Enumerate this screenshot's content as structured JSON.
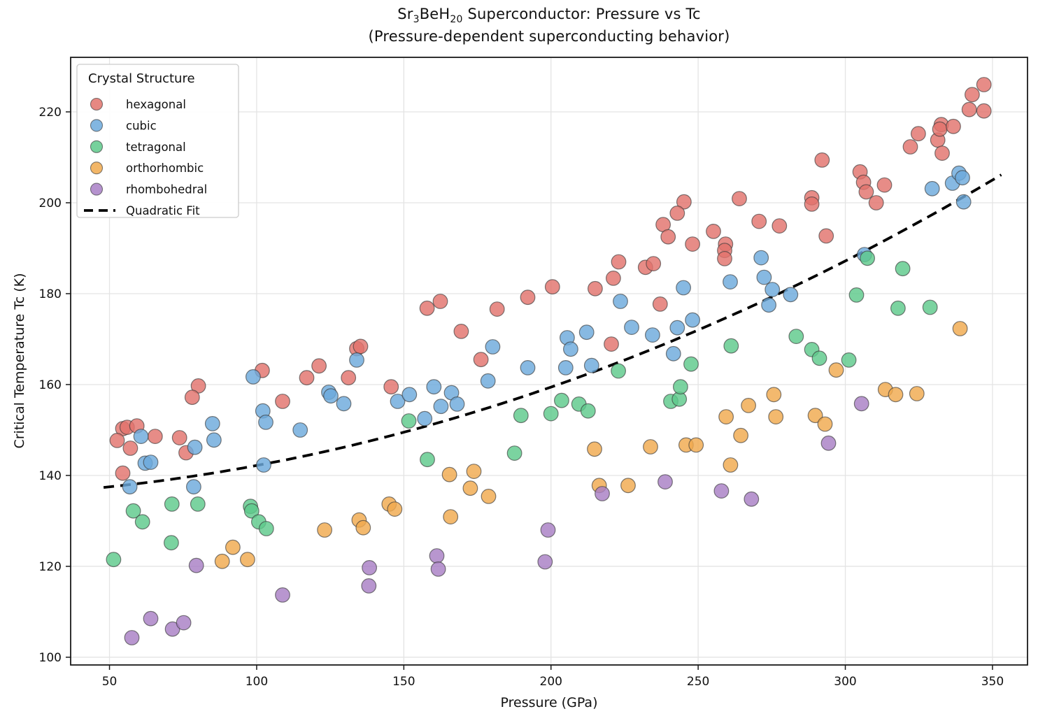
{
  "title": {
    "pre": "Sr",
    "sub1": "3",
    "mid": "BeH",
    "sub2": "20",
    "post": " Superconductor: Pressure vs Tc",
    "line2": "(Pressure-dependent superconducting behavior)"
  },
  "chart_data": {
    "type": "scatter",
    "title": "Sr3BeH20 Superconductor: Pressure vs Tc",
    "subtitle": "(Pressure-dependent superconducting behavior)",
    "xlabel": "Pressure (GPa)",
    "ylabel": "Critical Temperature Tc (K)",
    "xlim": [
      36.8,
      361.9
    ],
    "ylim": [
      98.3,
      232.0
    ],
    "xticks": [
      50,
      100,
      150,
      200,
      250,
      300,
      350
    ],
    "yticks": [
      100,
      120,
      140,
      160,
      180,
      200,
      220
    ],
    "grid": true,
    "grid_color": "#e4e4e4",
    "spine_color": "#1a1a1a",
    "legend_title": "Crystal Structure",
    "legend_position": "upper left",
    "marker_edge_color": "#3a3a3a",
    "series": [
      {
        "name": "hexagonal",
        "color": "#e2736c",
        "points": [
          [
            54.5,
            150.3
          ],
          [
            56.0,
            150.6
          ],
          [
            59.3,
            150.9
          ],
          [
            52.6,
            147.7
          ],
          [
            57.1,
            146.0
          ],
          [
            65.5,
            148.6
          ],
          [
            73.8,
            148.3
          ],
          [
            76.0,
            145.0
          ],
          [
            80.2,
            159.7
          ],
          [
            78.1,
            157.2
          ],
          [
            101.9,
            163.1
          ],
          [
            108.8,
            156.3
          ],
          [
            117.0,
            161.5
          ],
          [
            54.5,
            140.5
          ],
          [
            131.2,
            161.5
          ],
          [
            134.0,
            167.9
          ],
          [
            135.3,
            168.4
          ],
          [
            121.2,
            164.1
          ],
          [
            145.7,
            159.5
          ],
          [
            157.9,
            176.8
          ],
          [
            162.4,
            178.3
          ],
          [
            169.5,
            171.7
          ],
          [
            176.2,
            165.5
          ],
          [
            181.7,
            176.6
          ],
          [
            192.1,
            179.2
          ],
          [
            200.5,
            181.5
          ],
          [
            215.0,
            181.1
          ],
          [
            221.2,
            183.4
          ],
          [
            223.0,
            187.0
          ],
          [
            232.1,
            185.8
          ],
          [
            234.8,
            186.6
          ],
          [
            237.1,
            177.7
          ],
          [
            220.5,
            168.9
          ],
          [
            245.2,
            200.2
          ],
          [
            242.9,
            197.7
          ],
          [
            238.1,
            195.2
          ],
          [
            239.8,
            192.5
          ],
          [
            248.1,
            190.9
          ],
          [
            264.0,
            200.9
          ],
          [
            255.2,
            193.7
          ],
          [
            259.3,
            190.9
          ],
          [
            259.0,
            189.5
          ],
          [
            259.0,
            187.7
          ],
          [
            270.7,
            195.9
          ],
          [
            277.6,
            194.9
          ],
          [
            292.1,
            209.4
          ],
          [
            293.5,
            192.7
          ],
          [
            288.6,
            201.1
          ],
          [
            288.6,
            199.7
          ],
          [
            305.0,
            206.8
          ],
          [
            306.2,
            204.5
          ],
          [
            313.3,
            203.9
          ],
          [
            307.1,
            202.4
          ],
          [
            310.5,
            200.0
          ],
          [
            322.1,
            212.3
          ],
          [
            324.8,
            215.2
          ],
          [
            331.4,
            213.8
          ],
          [
            332.6,
            217.2
          ],
          [
            332.1,
            216.2
          ],
          [
            336.7,
            216.8
          ],
          [
            332.9,
            210.9
          ],
          [
            342.1,
            220.5
          ],
          [
            347.1,
            220.2
          ],
          [
            343.1,
            223.8
          ],
          [
            347.1,
            226.0
          ]
        ]
      },
      {
        "name": "cubic",
        "color": "#6ca9dc",
        "points": [
          [
            98.8,
            161.7
          ],
          [
            102.1,
            154.2
          ],
          [
            103.1,
            151.7
          ],
          [
            85.0,
            151.4
          ],
          [
            85.5,
            147.8
          ],
          [
            60.7,
            148.6
          ],
          [
            79.0,
            146.2
          ],
          [
            114.8,
            150.0
          ],
          [
            102.4,
            142.3
          ],
          [
            62.1,
            142.7
          ],
          [
            64.0,
            142.9
          ],
          [
            56.9,
            137.5
          ],
          [
            78.6,
            137.5
          ],
          [
            124.5,
            158.3
          ],
          [
            125.2,
            157.5
          ],
          [
            129.6,
            155.8
          ],
          [
            134.0,
            165.4
          ],
          [
            147.9,
            156.3
          ],
          [
            151.9,
            157.8
          ],
          [
            160.2,
            159.5
          ],
          [
            166.2,
            158.2
          ],
          [
            162.6,
            155.2
          ],
          [
            168.1,
            155.7
          ],
          [
            157.1,
            152.5
          ],
          [
            178.6,
            160.8
          ],
          [
            180.2,
            168.3
          ],
          [
            192.1,
            163.7
          ],
          [
            205.5,
            170.3
          ],
          [
            206.7,
            167.8
          ],
          [
            212.1,
            171.5
          ],
          [
            205.0,
            163.7
          ],
          [
            213.8,
            164.2
          ],
          [
            223.6,
            178.3
          ],
          [
            227.4,
            172.6
          ],
          [
            234.5,
            170.9
          ],
          [
            242.9,
            172.5
          ],
          [
            248.1,
            174.2
          ],
          [
            241.6,
            166.8
          ],
          [
            245.0,
            181.3
          ],
          [
            260.9,
            182.6
          ],
          [
            272.4,
            183.6
          ],
          [
            275.2,
            180.9
          ],
          [
            274.0,
            177.5
          ],
          [
            271.4,
            187.9
          ],
          [
            281.4,
            179.8
          ],
          [
            306.5,
            188.6
          ],
          [
            329.5,
            203.1
          ],
          [
            336.4,
            204.3
          ],
          [
            338.6,
            206.5
          ],
          [
            339.8,
            205.5
          ],
          [
            340.2,
            200.2
          ]
        ]
      },
      {
        "name": "tetragonal",
        "color": "#5ec98b",
        "points": [
          [
            51.4,
            121.5
          ],
          [
            58.1,
            132.2
          ],
          [
            61.2,
            129.8
          ],
          [
            71.2,
            133.7
          ],
          [
            80.0,
            133.7
          ],
          [
            71.0,
            125.2
          ],
          [
            97.9,
            133.2
          ],
          [
            98.3,
            132.2
          ],
          [
            100.7,
            129.8
          ],
          [
            103.3,
            128.3
          ],
          [
            151.7,
            152.0
          ],
          [
            158.0,
            143.5
          ],
          [
            187.6,
            144.9
          ],
          [
            189.8,
            153.2
          ],
          [
            200.0,
            153.6
          ],
          [
            203.6,
            156.5
          ],
          [
            209.5,
            155.7
          ],
          [
            212.6,
            154.2
          ],
          [
            222.9,
            163.0
          ],
          [
            240.7,
            156.3
          ],
          [
            243.6,
            156.8
          ],
          [
            244.0,
            159.5
          ],
          [
            247.6,
            164.5
          ],
          [
            261.2,
            168.5
          ],
          [
            283.3,
            170.6
          ],
          [
            288.6,
            167.7
          ],
          [
            291.2,
            165.8
          ],
          [
            301.2,
            165.4
          ],
          [
            303.8,
            179.7
          ],
          [
            307.5,
            187.8
          ],
          [
            317.9,
            176.8
          ],
          [
            319.5,
            185.5
          ],
          [
            328.8,
            177.0
          ]
        ]
      },
      {
        "name": "orthorhombic",
        "color": "#f0a94e",
        "points": [
          [
            91.9,
            124.2
          ],
          [
            88.3,
            121.1
          ],
          [
            96.9,
            121.5
          ],
          [
            123.1,
            128.0
          ],
          [
            134.8,
            130.2
          ],
          [
            136.2,
            128.5
          ],
          [
            145.0,
            133.7
          ],
          [
            146.9,
            132.6
          ],
          [
            165.9,
            130.9
          ],
          [
            165.5,
            140.2
          ],
          [
            173.8,
            140.9
          ],
          [
            172.6,
            137.2
          ],
          [
            178.8,
            135.4
          ],
          [
            214.8,
            145.8
          ],
          [
            216.4,
            137.8
          ],
          [
            226.2,
            137.8
          ],
          [
            233.8,
            146.3
          ],
          [
            245.9,
            146.7
          ],
          [
            249.3,
            146.7
          ],
          [
            259.5,
            152.9
          ],
          [
            261.0,
            142.3
          ],
          [
            267.1,
            155.4
          ],
          [
            275.7,
            157.8
          ],
          [
            276.4,
            152.9
          ],
          [
            264.5,
            148.8
          ],
          [
            289.8,
            153.2
          ],
          [
            293.1,
            151.3
          ],
          [
            296.9,
            163.2
          ],
          [
            313.6,
            158.9
          ],
          [
            317.1,
            157.8
          ],
          [
            324.3,
            158.0
          ],
          [
            339.0,
            172.3
          ]
        ]
      },
      {
        "name": "rhombohedral",
        "color": "#a87fc5",
        "points": [
          [
            57.6,
            104.3
          ],
          [
            64.0,
            108.5
          ],
          [
            71.4,
            106.2
          ],
          [
            75.2,
            107.6
          ],
          [
            79.5,
            120.2
          ],
          [
            108.8,
            113.7
          ],
          [
            138.3,
            119.7
          ],
          [
            138.1,
            115.7
          ],
          [
            161.2,
            122.3
          ],
          [
            161.7,
            119.4
          ],
          [
            199.0,
            128.0
          ],
          [
            198.0,
            121.0
          ],
          [
            217.4,
            136.0
          ],
          [
            238.8,
            138.6
          ],
          [
            257.9,
            136.6
          ],
          [
            268.1,
            134.8
          ],
          [
            294.3,
            147.1
          ],
          [
            305.5,
            155.8
          ]
        ]
      }
    ],
    "fit": {
      "name": "Quadratic Fit",
      "style": "dashed",
      "color": "#000000",
      "coeffs": {
        "a": 135.44,
        "b": 0.015,
        "c": 0.000525
      },
      "x_range": [
        48,
        353
      ]
    }
  }
}
